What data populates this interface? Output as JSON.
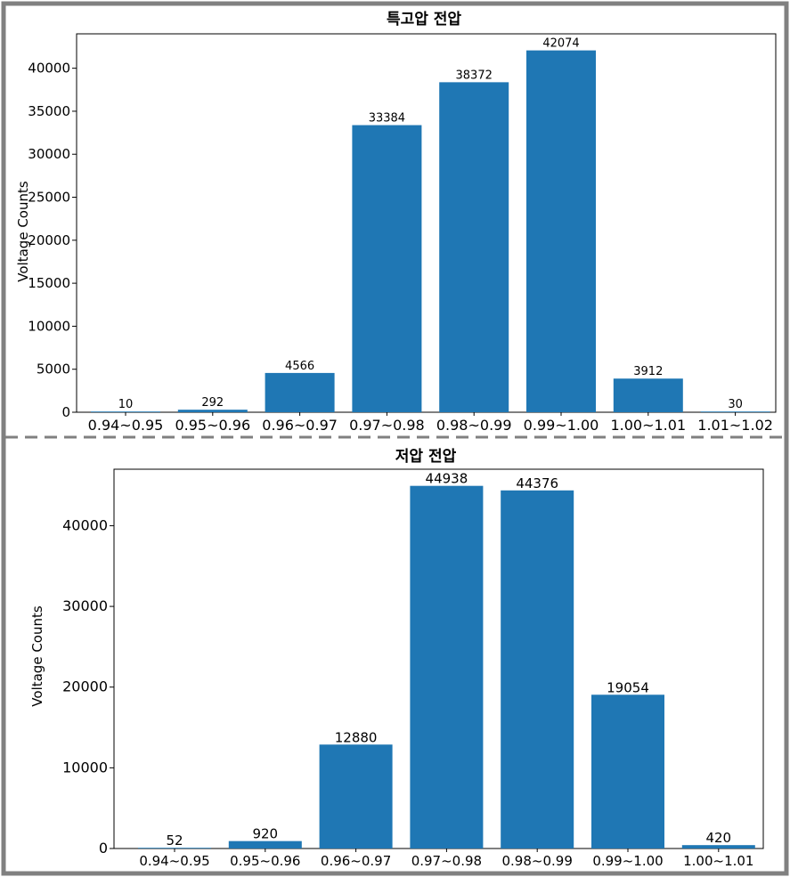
{
  "colors": {
    "bar": "#1f77b4",
    "frame": "#808080",
    "divider": "#808080",
    "axis": "#000000",
    "text": "#000000"
  },
  "chart_data": [
    {
      "type": "bar",
      "title": "특고압 전압",
      "xlabel": "",
      "ylabel": "Voltage Counts",
      "ylim": [
        0,
        44000
      ],
      "yticks": [
        0,
        5000,
        10000,
        15000,
        20000,
        25000,
        30000,
        35000,
        40000
      ],
      "categories": [
        "0.94~0.95",
        "0.95~0.96",
        "0.96~0.97",
        "0.97~0.98",
        "0.98~0.99",
        "0.99~1.00",
        "1.00~1.01",
        "1.01~1.02"
      ],
      "values": [
        10,
        292,
        4566,
        33384,
        38372,
        42074,
        3912,
        30
      ],
      "data_labels": true,
      "grid": false,
      "legend": "none"
    },
    {
      "type": "bar",
      "title": "저압 전압",
      "xlabel": "",
      "ylabel": "Voltage Counts",
      "ylim": [
        0,
        47000
      ],
      "yticks": [
        0,
        10000,
        20000,
        30000,
        40000
      ],
      "categories": [
        "0.94~0.95",
        "0.95~0.96",
        "0.96~0.97",
        "0.97~0.98",
        "0.98~0.99",
        "0.99~1.00",
        "1.00~1.01"
      ],
      "values": [
        52,
        920,
        12880,
        44938,
        44376,
        19054,
        420
      ],
      "data_labels": true,
      "grid": false,
      "legend": "none"
    }
  ]
}
